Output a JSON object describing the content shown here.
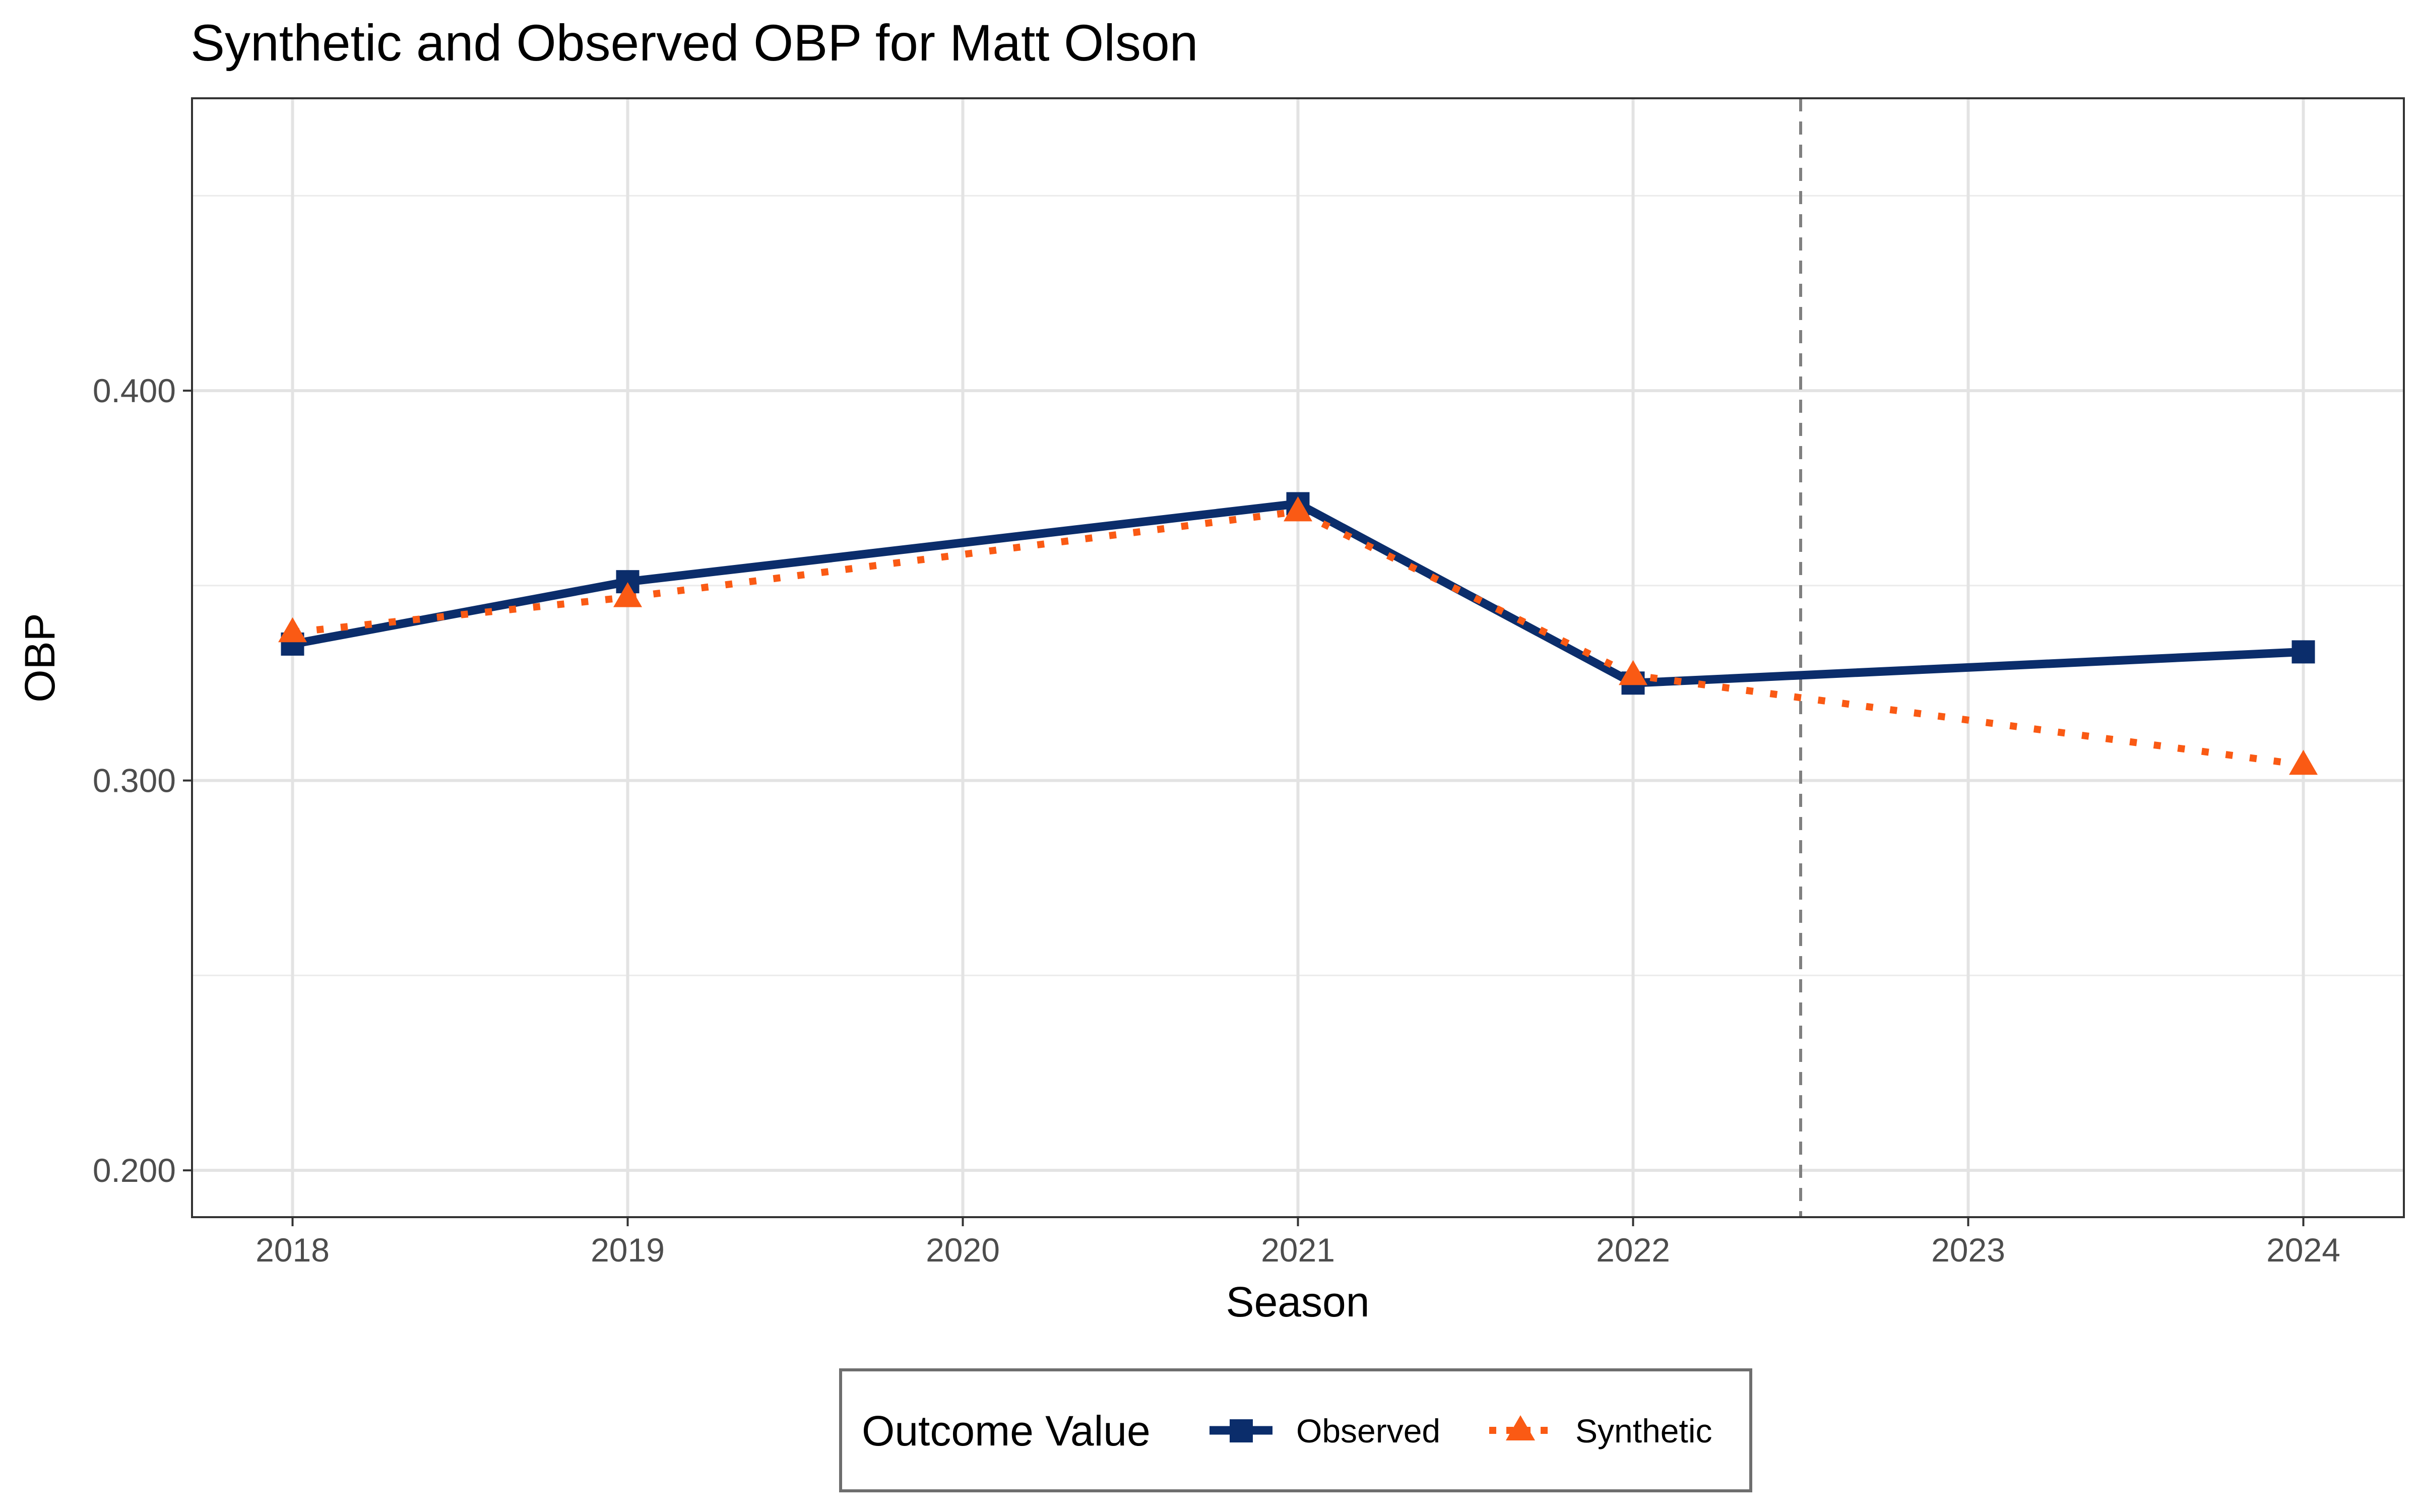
{
  "chart_data": {
    "type": "line",
    "title": "Synthetic and Observed OBP for Matt Olson",
    "xlabel": "Season",
    "ylabel": "OBP",
    "x": [
      2018,
      2019,
      2020,
      2021,
      2022,
      2023,
      2024
    ],
    "x_ticks": [
      "2018",
      "2019",
      "2020",
      "2021",
      "2022",
      "2023",
      "2024"
    ],
    "y_ticks": [
      "0.200",
      "0.300",
      "0.400"
    ],
    "y_tick_values": [
      0.2,
      0.3,
      0.4
    ],
    "xlim": [
      2017.7,
      2024.3
    ],
    "ylim": [
      0.188,
      0.475
    ],
    "grid": true,
    "treatment_line": {
      "x": 2022.5,
      "style": "dashed",
      "color": "#808080"
    },
    "legend": {
      "title": "Outcome Value",
      "position": "bottom",
      "entries": [
        "Observed",
        "Synthetic"
      ]
    },
    "series": [
      {
        "name": "Observed",
        "color": "#0b2d6b",
        "line": "solid",
        "marker": "square",
        "points": [
          {
            "x": 2018,
            "y": 0.335
          },
          {
            "x": 2019,
            "y": 0.351
          },
          {
            "x": 2021,
            "y": 0.371
          },
          {
            "x": 2022,
            "y": 0.325
          },
          {
            "x": 2024,
            "y": 0.333
          }
        ]
      },
      {
        "name": "Synthetic",
        "color": "#fa5a14",
        "line": "dotted",
        "marker": "triangle",
        "points": [
          {
            "x": 2018,
            "y": 0.338
          },
          {
            "x": 2019,
            "y": 0.347
          },
          {
            "x": 2021,
            "y": 0.369
          },
          {
            "x": 2022,
            "y": 0.327
          },
          {
            "x": 2024,
            "y": 0.304
          }
        ]
      }
    ]
  }
}
